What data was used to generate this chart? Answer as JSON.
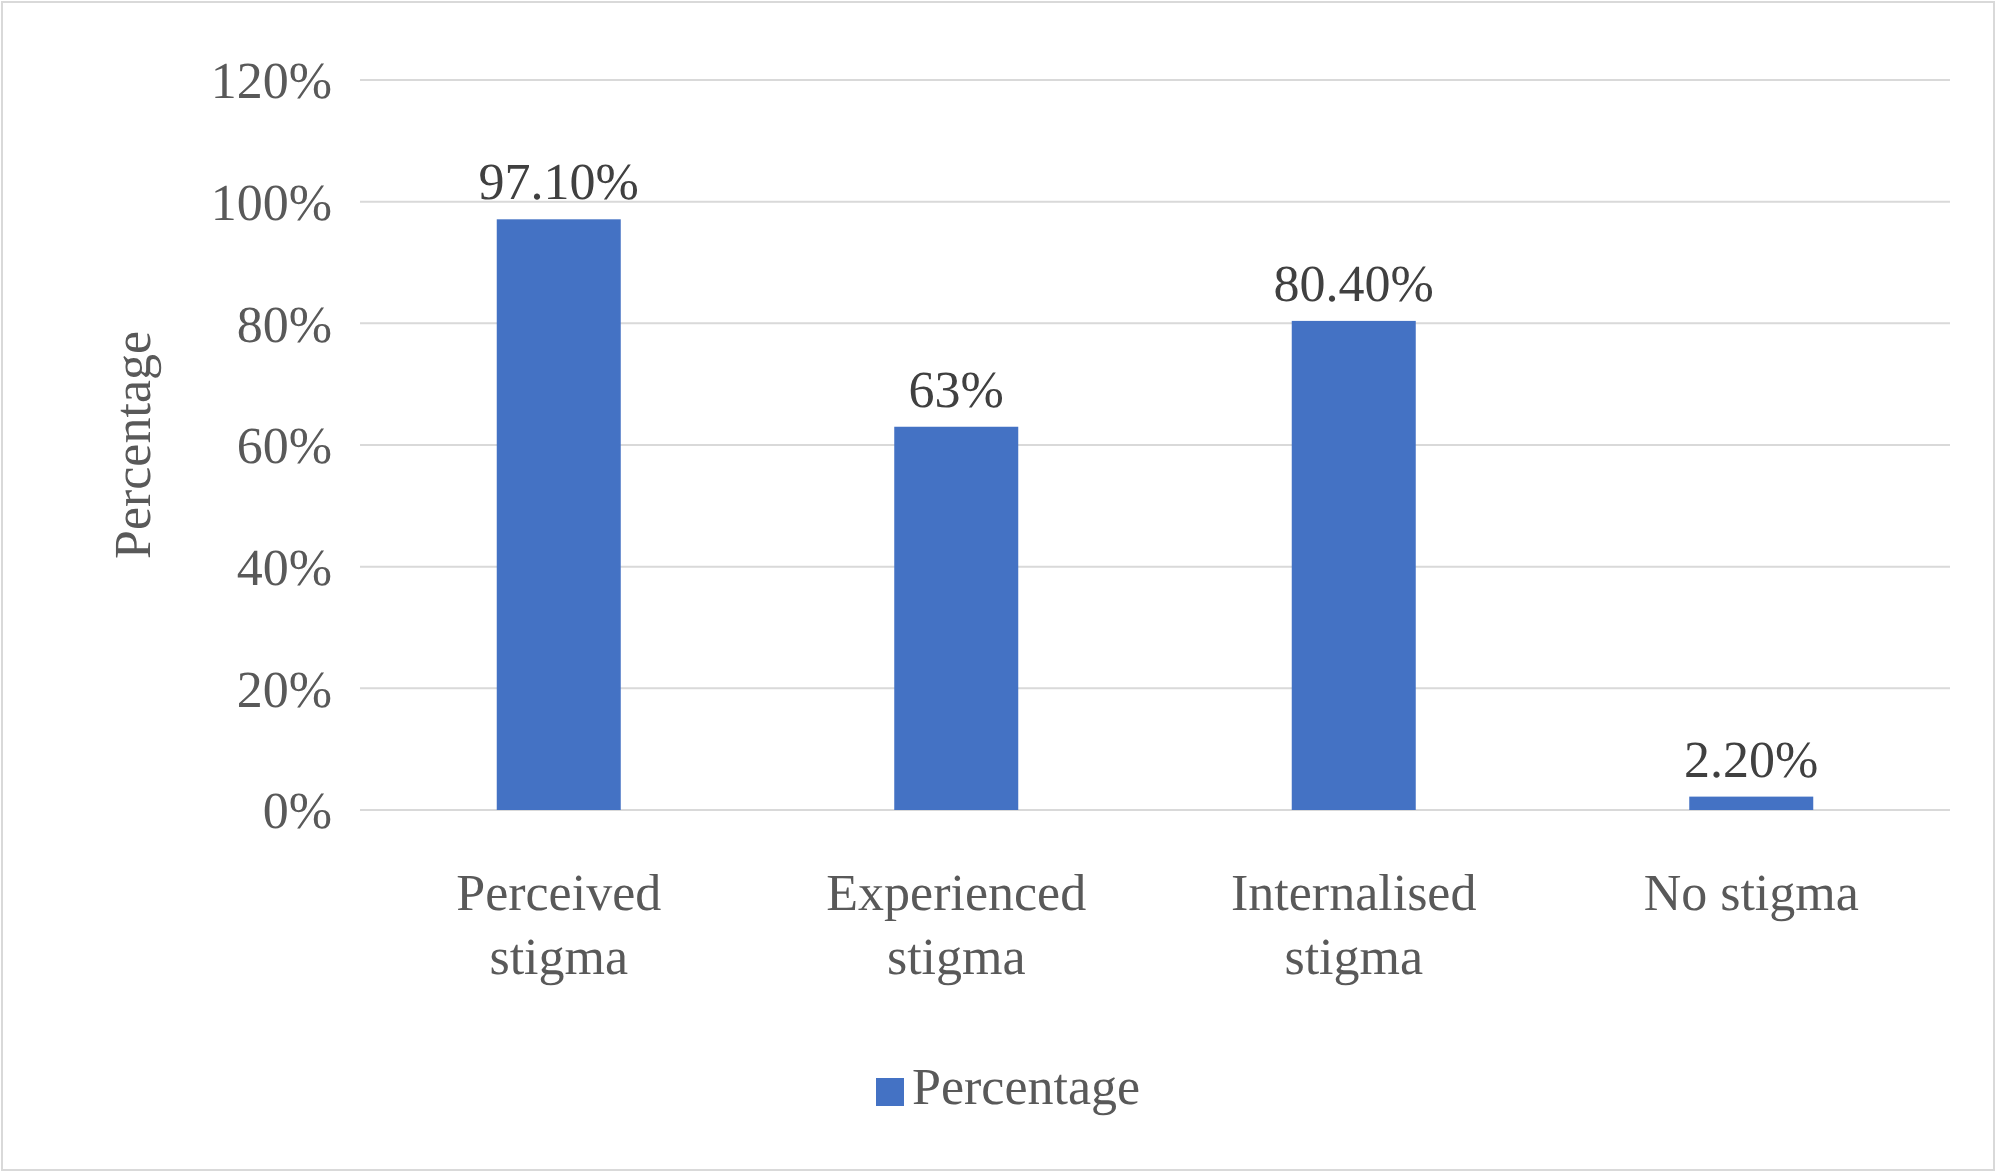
{
  "chart_data": {
    "type": "bar",
    "ylabel": "Percentage",
    "categories": [
      "Perceived stigma",
      "Experienced stigma",
      "Internalised stigma",
      "No stigma"
    ],
    "series": [
      {
        "name": "Percentage",
        "color": "#4472c4",
        "values": [
          97.1,
          63,
          80.4,
          2.2
        ],
        "value_labels": [
          "97.10%",
          "63%",
          "80.40%",
          "2.20%"
        ]
      }
    ],
    "ylim": [
      0,
      120
    ],
    "yticks": [
      {
        "value": 0,
        "label": "0%"
      },
      {
        "value": 20,
        "label": "20%"
      },
      {
        "value": 40,
        "label": "40%"
      },
      {
        "value": 60,
        "label": "60%"
      },
      {
        "value": 80,
        "label": "80%"
      },
      {
        "value": 100,
        "label": "100%"
      },
      {
        "value": 120,
        "label": "120%"
      }
    ],
    "grid": "y",
    "legend": "bottom"
  }
}
